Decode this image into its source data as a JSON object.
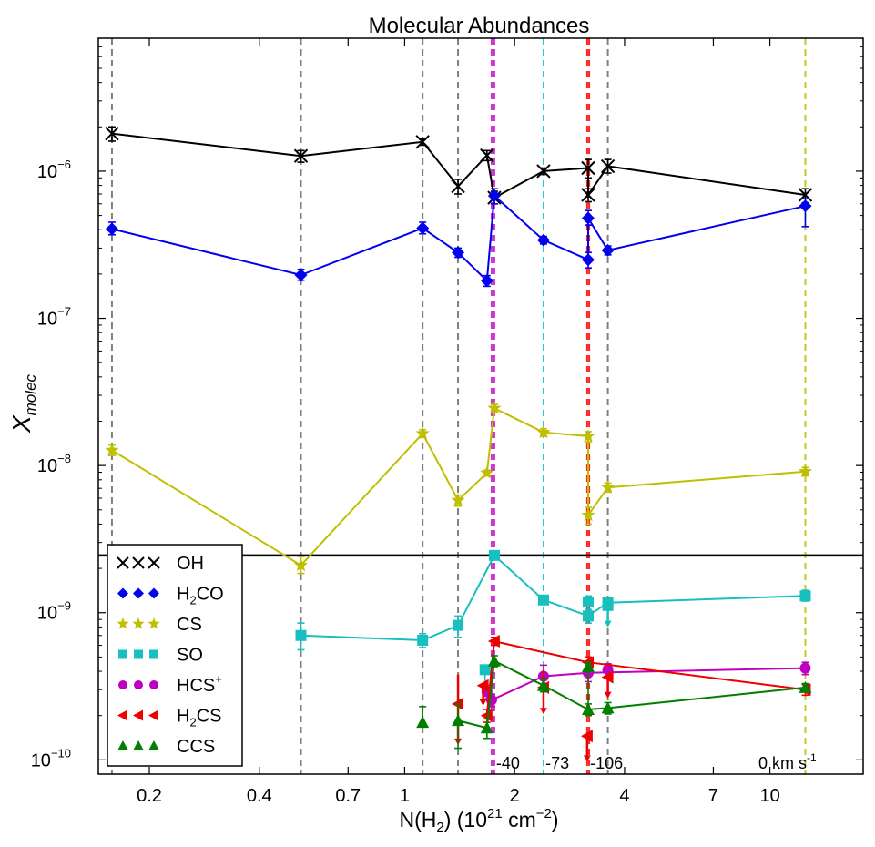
{
  "chart_data": {
    "type": "scatter",
    "title": "Molecular Abundances",
    "xlabel": "N(H₂) (10²¹ cm⁻²)",
    "ylabel": "X",
    "ylabel_sub": "molec",
    "xscale": "log",
    "yscale": "log",
    "xlim": [
      0.145,
      18
    ],
    "ylim": [
      8e-11,
      8e-06
    ],
    "xticks": [
      {
        "value": 0.2,
        "label": "0.2"
      },
      {
        "value": 0.4,
        "label": "0.4"
      },
      {
        "value": 0.7,
        "label": "0.7"
      },
      {
        "value": 1,
        "label": "1"
      },
      {
        "value": 2,
        "label": "2"
      },
      {
        "value": 4,
        "label": "4"
      },
      {
        "value": 7,
        "label": "7"
      },
      {
        "value": 10,
        "label": "10"
      }
    ],
    "yticks": [
      {
        "value": 1e-10,
        "base": "10",
        "exp": "−10"
      },
      {
        "value": 1e-09,
        "base": "10",
        "exp": "−9"
      },
      {
        "value": 1e-08,
        "base": "10",
        "exp": "−8"
      },
      {
        "value": 1e-07,
        "base": "10",
        "exp": "−7"
      },
      {
        "value": 1e-06,
        "base": "10",
        "exp": "−6"
      }
    ],
    "hline": 2.45e-09,
    "vlines": [
      {
        "x": 0.158,
        "color": "#808080"
      },
      {
        "x": 0.52,
        "color": "#808080"
      },
      {
        "x": 1.12,
        "color": "#808080"
      },
      {
        "x": 1.4,
        "color": "#808080"
      },
      {
        "x": 1.73,
        "color": "#cc33cc"
      },
      {
        "x": 1.76,
        "color": "#cc33cc"
      },
      {
        "x": 2.4,
        "color": "#22cccc"
      },
      {
        "x": 3.16,
        "color": "#ff2222"
      },
      {
        "x": 3.2,
        "color": "#ff2222"
      },
      {
        "x": 3.6,
        "color": "#808080"
      },
      {
        "x": 12.5,
        "color": "#c8c820"
      }
    ],
    "annotations": [
      {
        "text": "-40",
        "x": 1.78
      },
      {
        "text": "-73",
        "x": 2.43
      },
      {
        "text": "-106",
        "x": 3.22
      },
      {
        "text": "0 km s",
        "sup": "-1",
        "x": 9.3
      }
    ],
    "legend": {
      "placement": "lower-left",
      "entries": [
        {
          "series": "OH",
          "label": "OH",
          "sub": "",
          "rest": "",
          "sup": ""
        },
        {
          "series": "H2CO",
          "label": "H",
          "sub": "2",
          "rest": "CO",
          "sup": ""
        },
        {
          "series": "CS",
          "label": "CS",
          "sub": "",
          "rest": "",
          "sup": ""
        },
        {
          "series": "SO",
          "label": "SO",
          "sub": "",
          "rest": "",
          "sup": ""
        },
        {
          "series": "HCS+",
          "label": "HCS",
          "sub": "",
          "rest": "",
          "sup": "+"
        },
        {
          "series": "H2CS",
          "label": "H",
          "sub": "2",
          "rest": "CS",
          "sup": ""
        },
        {
          "series": "CCS",
          "label": "CCS",
          "sub": "",
          "rest": "",
          "sup": ""
        }
      ]
    },
    "series": [
      {
        "name": "OH",
        "color": "#000000",
        "marker": "x",
        "points": [
          {
            "x": 0.158,
            "y": 1.8e-06,
            "elo": 1.6e-06,
            "ehi": 2e-06
          },
          {
            "x": 0.52,
            "y": 1.27e-06,
            "elo": 1.15e-06,
            "ehi": 1.38e-06
          },
          {
            "x": 1.12,
            "y": 1.58e-06,
            "elo": 1.5e-06,
            "ehi": 1.65e-06
          },
          {
            "x": 1.4,
            "y": 7.9e-07,
            "elo": 7e-07,
            "ehi": 8.8e-07
          },
          {
            "x": 1.68,
            "y": 1.28e-06,
            "elo": 1.18e-06,
            "ehi": 1.38e-06
          },
          {
            "x": 1.76,
            "y": 6.6e-07,
            "elo": 6e-07,
            "ehi": 7.3e-07
          },
          {
            "x": 2.4,
            "y": 1e-06,
            "elo": 9.5e-07,
            "ehi": 1.05e-06
          },
          {
            "x": 3.18,
            "y": 1.05e-06,
            "elo": 9e-07,
            "ehi": 1.2e-06
          },
          {
            "x": 3.18,
            "y": 6.9e-07,
            "elo": 6.2e-07,
            "ehi": 7.6e-07
          },
          {
            "x": 3.6,
            "y": 1.08e-06,
            "elo": 9.7e-07,
            "ehi": 1.2e-06
          },
          {
            "x": 12.5,
            "y": 6.9e-07,
            "elo": 6.1e-07,
            "ehi": 7.6e-07
          }
        ]
      },
      {
        "name": "H2CO",
        "color": "#0000ee",
        "marker": "diamond",
        "points": [
          {
            "x": 0.158,
            "y": 4.05e-07,
            "elo": 3.7e-07,
            "ehi": 4.5e-07
          },
          {
            "x": 0.52,
            "y": 1.97e-07,
            "elo": 1.8e-07,
            "ehi": 2.15e-07
          },
          {
            "x": 1.12,
            "y": 4.1e-07,
            "elo": 3.75e-07,
            "ehi": 4.5e-07
          },
          {
            "x": 1.4,
            "y": 2.8e-07,
            "elo": 2.6e-07,
            "ehi": 3e-07
          },
          {
            "x": 1.68,
            "y": 1.8e-07,
            "elo": 1.65e-07,
            "ehi": 1.95e-07
          },
          {
            "x": 1.76,
            "y": 6.8e-07,
            "elo": 6e-07,
            "ehi": 7.6e-07
          },
          {
            "x": 2.4,
            "y": 3.4e-07,
            "elo": 3.2e-07,
            "ehi": 3.6e-07
          },
          {
            "x": 3.18,
            "y": 2.5e-07,
            "elo": 2.2e-07,
            "ehi": 2.8e-07
          },
          {
            "x": 3.18,
            "y": 4.8e-07,
            "elo": 4.3e-07,
            "ehi": 5.4e-07
          },
          {
            "x": 3.6,
            "y": 2.9e-07,
            "elo": 2.7e-07,
            "ehi": 3.1e-07
          },
          {
            "x": 12.5,
            "y": 5.8e-07,
            "elo": 4.2e-07,
            "ehi": 6.5e-07
          }
        ]
      },
      {
        "name": "CS",
        "color": "#bfbf00",
        "marker": "star",
        "points": [
          {
            "x": 0.158,
            "y": 1.27e-08,
            "elo": 1.17e-08,
            "ehi": 1.38e-08
          },
          {
            "x": 0.52,
            "y": 2.1e-09,
            "elo": 1.85e-09,
            "ehi": 2.4e-09
          },
          {
            "x": 1.12,
            "y": 1.65e-08,
            "elo": 1.55e-08,
            "ehi": 1.75e-08
          },
          {
            "x": 1.4,
            "y": 5.8e-09,
            "elo": 5.3e-09,
            "ehi": 6.3e-09
          },
          {
            "x": 1.68,
            "y": 8.9e-09,
            "elo": 8.5e-09,
            "ehi": 9.3e-09
          },
          {
            "x": 1.76,
            "y": 2.45e-08,
            "elo": 2.3e-08,
            "ehi": 2.6e-08
          },
          {
            "x": 2.4,
            "y": 1.68e-08,
            "elo": 1.58e-08,
            "ehi": 1.78e-08
          },
          {
            "x": 3.18,
            "y": 1.58e-08,
            "elo": 1.45e-08,
            "ehi": 1.7e-08
          },
          {
            "x": 3.18,
            "y": 4.6e-09,
            "elo": 4e-09,
            "ehi": 5.2e-09
          },
          {
            "x": 3.6,
            "y": 7.1e-09,
            "elo": 6.6e-09,
            "ehi": 7.6e-09
          },
          {
            "x": 12.5,
            "y": 9.1e-09,
            "elo": 8.5e-09,
            "ehi": 9.7e-09
          }
        ]
      },
      {
        "name": "SO",
        "color": "#17bfbf",
        "marker": "square",
        "points": [
          {
            "x": 0.52,
            "y": 7e-10,
            "elo": 5.6e-10,
            "ehi": 8.5e-10
          },
          {
            "x": 1.12,
            "y": 6.5e-10,
            "elo": 5.8e-10,
            "ehi": 7.2e-10
          },
          {
            "x": 1.4,
            "y": 8.2e-10,
            "elo": 6.8e-10,
            "ehi": 9.5e-10
          },
          {
            "x": 1.76,
            "y": 2.45e-09,
            "elo": 2.3e-09,
            "ehi": 2.6e-09
          },
          {
            "x": 2.4,
            "y": 1.22e-09,
            "elo": 1.15e-09,
            "ehi": 1.3e-09
          },
          {
            "x": 3.18,
            "y": 9.5e-10,
            "elo": 8.5e-10,
            "ehi": 1.05e-09
          },
          {
            "x": 3.6,
            "y": 1.17e-09,
            "elo": 1.05e-09,
            "ehi": 1.25e-09
          },
          {
            "x": 12.5,
            "y": 1.3e-09,
            "elo": 1.2e-09,
            "ehi": 1.42e-09
          }
        ],
        "extra_points": [
          {
            "x": 1.66,
            "y": 4.1e-10,
            "elo": 3e-10,
            "ehi": 4.4e-10
          },
          {
            "x": 3.18,
            "y": 1.18e-09,
            "elo": 1.05e-09,
            "ehi": 1.3e-09
          }
        ],
        "upper_limits": [
          {
            "x": 3.6,
            "y": 1.12e-09,
            "to": 8.2e-10
          }
        ]
      },
      {
        "name": "HCS+",
        "color": "#bf00bf",
        "marker": "circle",
        "points": [
          {
            "x": 1.73,
            "y": 2.55e-10,
            "elo": 2.3e-10,
            "ehi": 2.8e-10
          },
          {
            "x": 2.4,
            "y": 3.7e-10,
            "elo": 3e-10,
            "ehi": 4.4e-10
          },
          {
            "x": 3.18,
            "y": 3.9e-10,
            "elo": 3.4e-10,
            "ehi": 4.5e-10
          },
          {
            "x": 12.5,
            "y": 4.2e-10,
            "elo": 3.8e-10,
            "ehi": 4.6e-10
          }
        ],
        "extra_points": [
          {
            "x": 1.68,
            "y": 2.9e-10,
            "elo": 2.6e-10,
            "ehi": 3.2e-10
          },
          {
            "x": 3.6,
            "y": 4.1e-10,
            "elo": 3.7e-10,
            "ehi": 4.5e-10
          }
        ]
      },
      {
        "name": "H2CS",
        "color": "#ee0000",
        "marker": "triangle-left",
        "points": [
          {
            "x": 1.68,
            "y": 2e-10,
            "elo": 1.8e-10,
            "ehi": 2.2e-10
          },
          {
            "x": 1.76,
            "y": 6.4e-10,
            "elo": 6e-10,
            "ehi": 6.8e-10
          },
          {
            "x": 3.18,
            "y": 4.6e-10,
            "elo": 4.2e-10,
            "ehi": 5e-10
          },
          {
            "x": 12.5,
            "y": 3e-10,
            "elo": 2.75e-10,
            "ehi": 3.25e-10
          }
        ],
        "upper_limits": [
          {
            "x": 1.4,
            "y": 2.4e-10,
            "to": 1.3e-10,
            "top": 3.8e-10
          },
          {
            "x": 1.64,
            "y": 3.2e-10,
            "to": 2.4e-10
          },
          {
            "x": 2.4,
            "y": 3.1e-10,
            "to": 2.1e-10,
            "top": 4.1e-10
          },
          {
            "x": 3.16,
            "y": 1.45e-10,
            "to": 1e-10
          },
          {
            "x": 3.6,
            "y": 3.65e-10,
            "to": 2.7e-10
          }
        ]
      },
      {
        "name": "CCS",
        "color": "#007f00",
        "marker": "triangle-up",
        "points": [
          {
            "x": 1.4,
            "y": 1.85e-10,
            "elo": 1.2e-10,
            "ehi": 2.4e-10
          },
          {
            "x": 1.68,
            "y": 1.65e-10,
            "elo": 1.4e-10,
            "ehi": 1.9e-10
          },
          {
            "x": 1.76,
            "y": 4.7e-10,
            "elo": 4.3e-10,
            "ehi": 5.1e-10
          },
          {
            "x": 2.4,
            "y": 3.2e-10,
            "elo": 2.9e-10,
            "ehi": 3.5e-10
          },
          {
            "x": 3.18,
            "y": 2.2e-10,
            "elo": 2e-10,
            "ehi": 2.4e-10
          },
          {
            "x": 3.6,
            "y": 2.25e-10,
            "elo": 2.05e-10,
            "ehi": 2.45e-10
          },
          {
            "x": 12.5,
            "y": 3.1e-10,
            "elo": 2.9e-10,
            "ehi": 3.3e-10
          }
        ],
        "extra_points": [
          {
            "x": 1.12,
            "y": 1.8e-10,
            "elo": 1.7e-10,
            "ehi": 2.3e-10
          },
          {
            "x": 3.18,
            "y": 4.3e-10,
            "elo": 2.2e-10,
            "ehi": 4.6e-10
          }
        ]
      }
    ]
  }
}
